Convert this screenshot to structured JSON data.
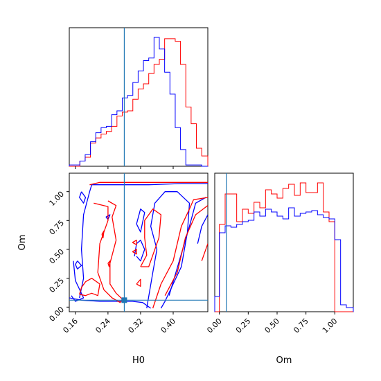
{
  "chart_data": {
    "type": "corner",
    "colors": {
      "series_a": "#ff0000",
      "series_b": "#0000ff",
      "truth": "#1f77b4"
    },
    "truth": {
      "H0": 0.28,
      "Om": 0.06
    },
    "panels": [
      {
        "id": "hist-H0",
        "type": "histogram",
        "xlabel": "",
        "xlim": [
          0.145,
          0.485
        ],
        "ylim": [
          0,
          1
        ],
        "x_ticks": [
          0.16,
          0.24,
          0.32,
          0.4
        ],
        "show_x_ticklabels": false,
        "bin_edges": [
          0.145,
          0.158,
          0.171,
          0.184,
          0.197,
          0.21,
          0.223,
          0.236,
          0.249,
          0.262,
          0.275,
          0.288,
          0.301,
          0.314,
          0.327,
          0.34,
          0.353,
          0.366,
          0.379,
          0.392,
          0.405,
          0.418,
          0.431,
          0.444,
          0.457,
          0.47,
          0.485
        ],
        "series": [
          {
            "name": "",
            "color": "#ff0000",
            "counts": [
              0.0,
              0.0,
              0.04,
              0.07,
              0.18,
              0.22,
              0.25,
              0.27,
              0.31,
              0.39,
              0.42,
              0.43,
              0.52,
              0.6,
              0.64,
              0.72,
              0.79,
              0.83,
              0.99,
              0.99,
              0.97,
              0.79,
              0.46,
              0.33,
              0.14,
              0.08
            ]
          },
          {
            "name": "",
            "color": "#0000ff",
            "counts": [
              0.01,
              0.01,
              0.04,
              0.09,
              0.19,
              0.26,
              0.3,
              0.31,
              0.4,
              0.43,
              0.53,
              0.55,
              0.65,
              0.74,
              0.82,
              0.84,
              1.0,
              0.91,
              0.73,
              0.56,
              0.3,
              0.13,
              0.01,
              0.01,
              0.01,
              0.0
            ]
          }
        ]
      },
      {
        "id": "contour-H0-Om",
        "type": "contour",
        "xlabel": "H0",
        "ylabel": "Om",
        "xlim": [
          0.145,
          0.485
        ],
        "ylim": [
          -0.04,
          1.16
        ],
        "x_ticks": [
          "0.16",
          "0.24",
          "0.32",
          "0.40"
        ],
        "x_tick_values": [
          0.16,
          0.24,
          0.32,
          0.4
        ],
        "y_ticks": [
          "0.00",
          "0.25",
          "0.50",
          "0.75",
          "1.00"
        ],
        "y_tick_values": [
          0.0,
          0.25,
          0.5,
          0.75,
          1.0
        ],
        "series": [
          {
            "name": "",
            "color": "#0000ff",
            "contours": [
              [
                [
                  0.145,
                  0.08
                ],
                [
                  0.175,
                  0.06
                ],
                [
                  0.22,
                  0.05
                ],
                [
                  0.265,
                  0.05
                ],
                [
                  0.29,
                  0.05
                ],
                [
                  0.3,
                  0.05
                ],
                [
                  0.325,
                  0.04
                ],
                [
                  0.345,
                  -0.01
                ]
              ],
              [
                [
                  0.17,
                  0.08
                ],
                [
                  0.18,
                  0.25
                ],
                [
                  0.175,
                  0.5
                ],
                [
                  0.18,
                  0.8
                ],
                [
                  0.195,
                  1.0
                ],
                [
                  0.2,
                  1.06
                ],
                [
                  0.26,
                  1.06
                ],
                [
                  0.34,
                  1.06
                ],
                [
                  0.42,
                  1.07
                ],
                [
                  0.485,
                  1.07
                ]
              ],
              [
                [
                  0.155,
                  0.4
                ],
                [
                  0.16,
                  0.23
                ],
                [
                  0.18,
                  0.08
                ],
                [
                  0.16,
                  0.05
                ],
                [
                  0.15,
                  0.1
                ]
              ],
              [
                [
                  0.335,
                  -0.01
                ],
                [
                  0.35,
                  0.3
                ],
                [
                  0.36,
                  0.5
                ],
                [
                  0.345,
                  0.7
                ],
                [
                  0.355,
                  0.9
                ],
                [
                  0.38,
                  1.0
                ],
                [
                  0.41,
                  1.0
                ],
                [
                  0.44,
                  0.9
                ],
                [
                  0.435,
                  0.65
                ],
                [
                  0.42,
                  0.35
                ],
                [
                  0.38,
                  0.05
                ],
                [
                  0.37,
                  -0.01
                ]
              ],
              [
                [
                  0.39,
                  0.1
                ],
                [
                  0.415,
                  0.4
                ],
                [
                  0.44,
                  0.7
                ],
                [
                  0.455,
                  0.9
                ],
                [
                  0.48,
                  0.95
                ]
              ],
              [
                [
                  0.46,
                  0.55
                ],
                [
                  0.47,
                  0.7
                ],
                [
                  0.485,
                  0.8
                ]
              ],
              [
                [
                  0.31,
                  0.72
                ],
                [
                  0.32,
                  0.85
                ],
                [
                  0.33,
                  0.82
                ],
                [
                  0.32,
                  0.65
                ],
                [
                  0.31,
                  0.72
                ]
              ],
              [
                [
                  0.305,
                  0.44
                ],
                [
                  0.31,
                  0.55
                ],
                [
                  0.32,
                  0.58
                ],
                [
                  0.33,
                  0.5
                ],
                [
                  0.32,
                  0.4
                ],
                [
                  0.31,
                  0.44
                ]
              ],
              [
                [
                  0.175,
                  1.0
                ],
                [
                  0.185,
                  0.95
                ],
                [
                  0.18,
                  0.9
                ],
                [
                  0.17,
                  0.95
                ],
                [
                  0.175,
                  1.0
                ]
              ],
              [
                [
                  0.235,
                  0.78
                ],
                [
                  0.245,
                  0.8
                ],
                [
                  0.24,
                  0.76
                ],
                [
                  0.235,
                  0.78
                ]
              ],
              [
                [
                  0.165,
                  0.4
                ],
                [
                  0.175,
                  0.36
                ],
                [
                  0.165,
                  0.33
                ],
                [
                  0.16,
                  0.37
                ],
                [
                  0.165,
                  0.4
                ]
              ]
            ]
          },
          {
            "name": "",
            "color": "#ff0000",
            "contours": [
              [
                [
                  0.195,
                  1.06
                ],
                [
                  0.22,
                  1.08
                ],
                [
                  0.3,
                  1.08
                ],
                [
                  0.38,
                  1.08
                ],
                [
                  0.485,
                  1.08
                ]
              ],
              [
                [
                  0.205,
                  0.9
                ],
                [
                  0.24,
                  0.87
                ],
                [
                  0.24,
                  0.75
                ],
                [
                  0.22,
                  0.55
                ],
                [
                  0.215,
                  0.3
                ],
                [
                  0.23,
                  0.15
                ],
                [
                  0.25,
                  0.08
                ],
                [
                  0.27,
                  0.04
                ],
                [
                  0.275,
                  0.07
                ],
                [
                  0.26,
                  0.12
                ],
                [
                  0.245,
                  0.2
                ],
                [
                  0.245,
                  0.38
                ],
                [
                  0.26,
                  0.58
                ],
                [
                  0.25,
                  0.78
                ],
                [
                  0.26,
                  0.88
                ],
                [
                  0.24,
                  0.92
                ]
              ],
              [
                [
                  0.17,
                  0.11
                ],
                [
                  0.185,
                  0.1
                ],
                [
                  0.2,
                  0.12
                ],
                [
                  0.215,
                  0.1
                ],
                [
                  0.22,
                  0.2
                ],
                [
                  0.2,
                  0.25
                ],
                [
                  0.185,
                  0.22
                ],
                [
                  0.175,
                  0.17
                ],
                [
                  0.17,
                  0.11
                ]
              ],
              [
                [
                  0.35,
                  -0.01
                ],
                [
                  0.37,
                  0.2
                ],
                [
                  0.4,
                  0.4
                ],
                [
                  0.42,
                  0.7
                ],
                [
                  0.44,
                  0.85
                ],
                [
                  0.45,
                  0.93
                ],
                [
                  0.485,
                  0.95
                ]
              ],
              [
                [
                  0.38,
                  0.1
                ],
                [
                  0.41,
                  0.3
                ],
                [
                  0.43,
                  0.6
                ],
                [
                  0.455,
                  0.8
                ],
                [
                  0.485,
                  0.88
                ]
              ],
              [
                [
                  0.47,
                  0.4
                ],
                [
                  0.485,
                  0.55
                ]
              ],
              [
                [
                  0.32,
                  0.35
                ],
                [
                  0.335,
                  0.45
                ],
                [
                  0.33,
                  0.6
                ],
                [
                  0.33,
                  0.75
                ],
                [
                  0.35,
                  0.85
                ],
                [
                  0.37,
                  0.8
                ],
                [
                  0.365,
                  0.6
                ],
                [
                  0.35,
                  0.45
                ],
                [
                  0.34,
                  0.35
                ],
                [
                  0.32,
                  0.35
                ]
              ],
              [
                [
                  0.31,
                  0.2
                ],
                [
                  0.32,
                  0.24
                ],
                [
                  0.32,
                  0.18
                ],
                [
                  0.31,
                  0.2
                ]
              ],
              [
                [
                  0.225,
                  0.63
                ],
                [
                  0.23,
                  0.66
                ],
                [
                  0.228,
                  0.6
                ],
                [
                  0.225,
                  0.63
                ]
              ],
              [
                [
                  0.24,
                  0.38
                ],
                [
                  0.245,
                  0.4
                ],
                [
                  0.243,
                  0.35
                ],
                [
                  0.24,
                  0.38
                ]
              ],
              [
                [
                  0.3,
                  0.56
                ],
                [
                  0.31,
                  0.58
                ],
                [
                  0.31,
                  0.54
                ],
                [
                  0.3,
                  0.56
                ]
              ],
              [
                [
                  0.3,
                  0.48
                ],
                [
                  0.31,
                  0.5
                ],
                [
                  0.31,
                  0.46
                ],
                [
                  0.3,
                  0.48
                ]
              ]
            ]
          }
        ]
      },
      {
        "id": "hist-Om",
        "type": "histogram",
        "xlabel": "Om",
        "xlim": [
          -0.04,
          1.16
        ],
        "ylim": [
          0,
          1
        ],
        "x_ticks": [
          "0.00",
          "0.25",
          "0.50",
          "0.75",
          "1.00"
        ],
        "x_tick_values": [
          0.0,
          0.25,
          0.5,
          0.75,
          1.0
        ],
        "bin_edges": [
          -0.04,
          0.0,
          0.05,
          0.1,
          0.15,
          0.2,
          0.25,
          0.3,
          0.35,
          0.4,
          0.45,
          0.5,
          0.55,
          0.6,
          0.65,
          0.7,
          0.75,
          0.8,
          0.85,
          0.9,
          0.95,
          1.0,
          1.05,
          1.1,
          1.16
        ],
        "series": [
          {
            "name": "",
            "color": "#ff0000",
            "counts": [
              0.0,
              0.63,
              0.85,
              0.85,
              0.65,
              0.74,
              0.71,
              0.79,
              0.75,
              0.88,
              0.85,
              0.82,
              0.89,
              0.92,
              0.84,
              0.93,
              0.86,
              0.86,
              0.93,
              0.72,
              0.65,
              0.0,
              0.0,
              0.0
            ]
          },
          {
            "name": "",
            "color": "#0000ff",
            "counts": [
              0.11,
              0.57,
              0.62,
              0.61,
              0.63,
              0.65,
              0.66,
              0.72,
              0.69,
              0.74,
              0.72,
              0.69,
              0.67,
              0.75,
              0.69,
              0.71,
              0.72,
              0.73,
              0.7,
              0.68,
              0.67,
              0.52,
              0.05,
              0.03
            ]
          }
        ]
      }
    ]
  }
}
